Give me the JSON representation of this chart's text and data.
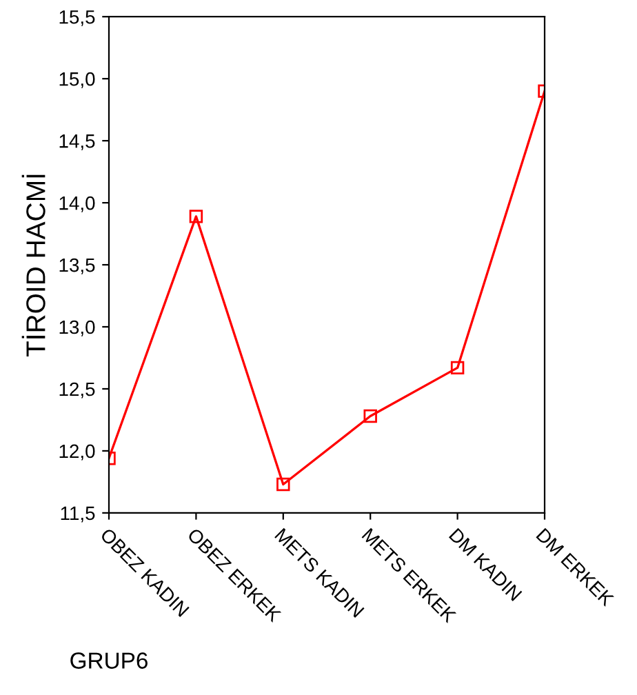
{
  "chart_data": {
    "type": "line",
    "xlabel": "GRUP6",
    "ylabel": "TİROID HACMİ",
    "categories": [
      "OBEZ KADIN",
      "OBEZ ERKEK",
      "METS KADIN",
      "METS ERKEK",
      "DM KADIN",
      "DM ERKEK"
    ],
    "series": [
      {
        "color": "#ff0000",
        "values": [
          11.94,
          13.89,
          11.73,
          12.28,
          12.67,
          14.9
        ]
      }
    ],
    "marker": "square",
    "line_style": "solid",
    "grid": false,
    "legend": false,
    "ylim": [
      11.5,
      15.5
    ],
    "yticks": [
      {
        "value": 11.5,
        "label": "11,5"
      },
      {
        "value": 12.0,
        "label": "12,0"
      },
      {
        "value": 12.5,
        "label": "12,5"
      },
      {
        "value": 13.0,
        "label": "13,0"
      },
      {
        "value": 13.5,
        "label": "13,5"
      },
      {
        "value": 14.0,
        "label": "14,0"
      },
      {
        "value": 14.5,
        "label": "14,5"
      },
      {
        "value": 15.0,
        "label": "15,0"
      },
      {
        "value": 15.5,
        "label": "15,5"
      }
    ]
  }
}
